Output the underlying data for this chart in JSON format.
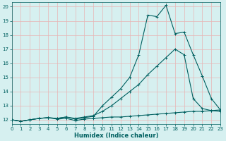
{
  "title": "",
  "xlabel": "Humidex (Indice chaleur)",
  "ylabel": "",
  "bg_color": "#d6f0f0",
  "grid_color": "#e8b4b4",
  "line_color": "#006060",
  "xlim": [
    0,
    23
  ],
  "ylim": [
    11.7,
    20.3
  ],
  "xticks": [
    0,
    1,
    2,
    3,
    4,
    5,
    6,
    7,
    8,
    9,
    10,
    11,
    12,
    13,
    14,
    15,
    16,
    17,
    18,
    19,
    20,
    21,
    22,
    23
  ],
  "yticks": [
    12,
    13,
    14,
    15,
    16,
    17,
    18,
    19,
    20
  ],
  "line1_x": [
    0,
    1,
    2,
    3,
    4,
    5,
    6,
    7,
    8,
    9,
    10,
    11,
    12,
    13,
    14,
    15,
    16,
    17,
    18,
    19,
    20,
    21,
    22,
    23
  ],
  "line1_y": [
    12.0,
    11.9,
    12.0,
    12.1,
    12.15,
    12.05,
    12.1,
    11.95,
    12.05,
    12.1,
    12.15,
    12.2,
    12.2,
    12.25,
    12.3,
    12.35,
    12.4,
    12.45,
    12.5,
    12.55,
    12.6,
    12.6,
    12.65,
    12.7
  ],
  "line2_x": [
    0,
    1,
    2,
    3,
    4,
    5,
    6,
    7,
    8,
    9,
    10,
    11,
    12,
    13,
    14,
    15,
    16,
    17,
    18,
    19,
    20,
    21,
    22,
    23
  ],
  "line2_y": [
    12.0,
    11.9,
    12.0,
    12.1,
    12.15,
    12.1,
    12.2,
    12.1,
    12.2,
    12.3,
    12.6,
    13.0,
    13.5,
    14.0,
    14.5,
    15.2,
    15.8,
    16.4,
    17.0,
    16.6,
    13.5,
    12.8,
    12.65,
    12.6
  ],
  "line3_x": [
    0,
    1,
    2,
    3,
    4,
    5,
    6,
    7,
    8,
    9,
    10,
    11,
    12,
    13,
    14,
    15,
    16,
    17,
    18,
    19,
    20,
    21,
    22,
    23
  ],
  "line3_y": [
    12.0,
    11.9,
    12.0,
    12.1,
    12.15,
    12.1,
    12.2,
    12.05,
    12.15,
    12.25,
    13.0,
    13.6,
    14.2,
    15.0,
    16.6,
    19.4,
    19.3,
    20.1,
    18.1,
    18.2,
    16.6,
    15.1,
    13.5,
    12.7
  ],
  "xlabel_fontsize": 6,
  "tick_fontsize": 5,
  "linewidth": 0.8,
  "markersize": 2.5
}
